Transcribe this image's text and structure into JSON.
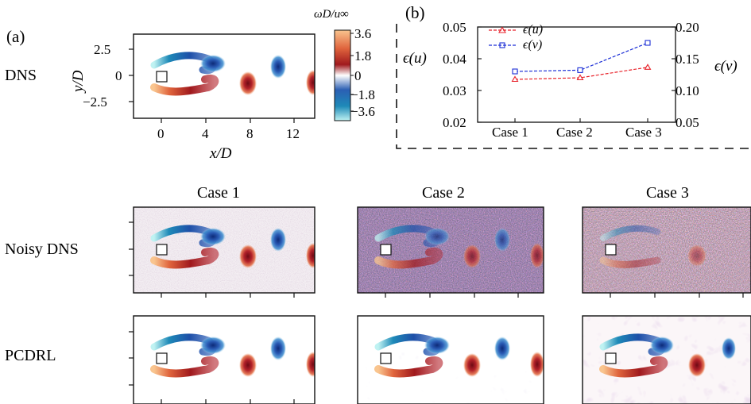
{
  "panel_a": {
    "label": "(a)",
    "row_label": "DNS",
    "xlabel": "x/D",
    "ylabel": "y/D",
    "xticks": [
      "0",
      "4",
      "8",
      "12"
    ],
    "yticks": [
      "2.5",
      "0",
      "−2.5"
    ],
    "colorbar": {
      "title": "ωD/u∞",
      "ticks": [
        "3.6",
        "1.8",
        "0",
        "−1.8",
        "−3.6"
      ],
      "colors": [
        "#f9c58f",
        "#e0653d",
        "#a0191d",
        "#ffffff",
        "#2b5fb3",
        "#1e8ab8",
        "#bff2f2"
      ]
    }
  },
  "panel_b": {
    "label": "(b)",
    "chart_data": {
      "type": "line",
      "categories": [
        "Case 1",
        "Case 2",
        "Case 3"
      ],
      "series": [
        {
          "name": "ϵ(u)",
          "axis": "left",
          "color": "#e8222a",
          "marker": "triangle",
          "values": [
            0.0335,
            0.034,
            0.0373
          ]
        },
        {
          "name": "ϵ(v)",
          "axis": "right",
          "color": "#1c2fd6",
          "marker": "square",
          "values": [
            0.13,
            0.132,
            0.175
          ]
        }
      ],
      "ylabel_left": "ϵ(u)",
      "ylabel_right": "ϵ(v)",
      "ylim_left": [
        0.02,
        0.05
      ],
      "ylim_right": [
        0.05,
        0.2
      ],
      "yticks_left": [
        "0.02",
        "0.03",
        "0.04",
        "0.05"
      ],
      "yticks_right": [
        "0.05",
        "0.10",
        "0.15",
        "0.20"
      ],
      "legend_position": "top-left"
    }
  },
  "grid": {
    "case_titles": [
      "Case 1",
      "Case 2",
      "Case 3"
    ],
    "row_labels": [
      "Noisy DNS",
      "PCDRL"
    ]
  }
}
